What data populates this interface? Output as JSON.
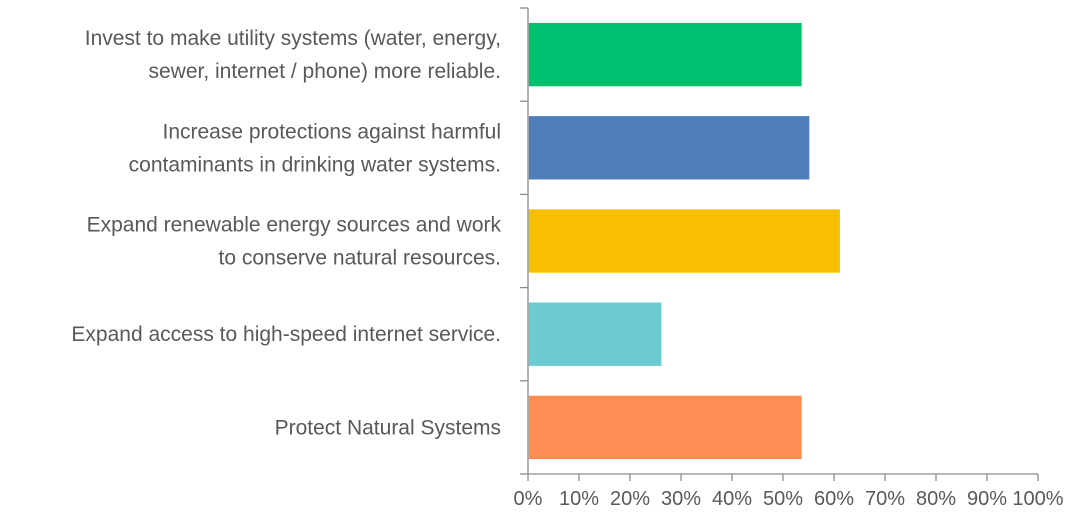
{
  "chart_data": {
    "type": "bar",
    "orientation": "horizontal",
    "categories": [
      [
        "Invest to make utility systems (water, energy,",
        "sewer, internet / phone) more reliable."
      ],
      [
        "Increase protections against harmful",
        "contaminants in drinking water systems."
      ],
      [
        "Expand renewable energy sources and work",
        "to conserve natural resources."
      ],
      [
        "Expand access to high-speed internet service."
      ],
      [
        "Protect Natural Systems"
      ]
    ],
    "values": [
      0.535,
      0.55,
      0.61,
      0.26,
      0.535
    ],
    "colors": [
      "#00c170",
      "#4f7eb8",
      "#f7bf00",
      "#6ccbd0",
      "#ff8c52"
    ],
    "xlim": [
      0,
      1
    ],
    "x_ticks": [
      "0%",
      "10%",
      "20%",
      "30%",
      "40%",
      "50%",
      "60%",
      "70%",
      "80%",
      "90%",
      "100%"
    ],
    "grid": false,
    "title": "",
    "xlabel": "",
    "ylabel": ""
  }
}
